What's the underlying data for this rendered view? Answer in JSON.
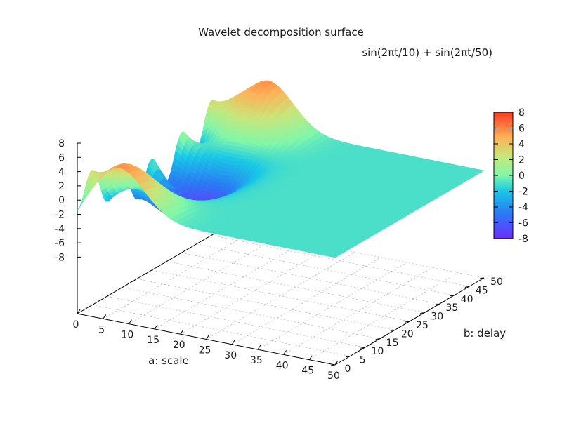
{
  "chart_data": {
    "type": "surface3d",
    "title": "Wavelet decomposition surface",
    "subtitle": "sin(2πt/10) + sin(2πt/50)",
    "xlabel": "a: scale",
    "ylabel": "b: delay",
    "x_ticks": [
      "0",
      "5",
      "10",
      "15",
      "20",
      "25",
      "30",
      "35",
      "40",
      "45",
      "50"
    ],
    "y_ticks": [
      "0",
      "5",
      "10",
      "15",
      "20",
      "25",
      "30",
      "35",
      "40",
      "45",
      "50"
    ],
    "z_ticks": [
      "8",
      "6",
      "4",
      "2",
      "0",
      "-2",
      "-4",
      "-6",
      "-8"
    ],
    "colorbar_ticks": [
      "8",
      "6",
      "4",
      "2",
      "0",
      "-2",
      "-4",
      "-6",
      "-8"
    ],
    "xlim": [
      0,
      50
    ],
    "ylim": [
      0,
      50
    ],
    "zlim": [
      -8,
      8
    ],
    "grid": true,
    "colormap": [
      "#6f2bff",
      "#2a7bf3",
      "#19c9e6",
      "#82f7a9",
      "#c8e67a",
      "#fcb258",
      "#fd3b22"
    ],
    "surface_features": {
      "main_peak": {
        "a": 8,
        "b": 50,
        "value": 7.5
      },
      "main_trough": {
        "a": 8,
        "b": 10,
        "value": -6
      },
      "ridge_period_b": 10,
      "baseline_value": -1
    }
  }
}
